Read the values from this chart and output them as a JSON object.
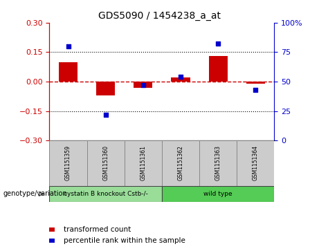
{
  "title": "GDS5090 / 1454238_a_at",
  "samples": [
    "GSM1151359",
    "GSM1151360",
    "GSM1151361",
    "GSM1151362",
    "GSM1151363",
    "GSM1151364"
  ],
  "bar_values": [
    0.1,
    -0.07,
    -0.03,
    0.02,
    0.13,
    -0.01
  ],
  "percentile_values": [
    80,
    22,
    47,
    54,
    82,
    43
  ],
  "ylim_left": [
    -0.3,
    0.3
  ],
  "ylim_right": [
    0,
    100
  ],
  "yticks_left": [
    -0.3,
    -0.15,
    0.0,
    0.15,
    0.3
  ],
  "yticks_right": [
    0,
    25,
    50,
    75,
    100
  ],
  "hlines": [
    0.15,
    -0.15
  ],
  "bar_color": "#cc0000",
  "dot_color": "#0000cc",
  "zero_line_color": "#cc0000",
  "groups": [
    {
      "label": "cystatin B knockout Cstb-/-",
      "samples": [
        0,
        1,
        2
      ],
      "color": "#99dd99"
    },
    {
      "label": "wild type",
      "samples": [
        3,
        4,
        5
      ],
      "color": "#55cc55"
    }
  ],
  "sample_box_color": "#cccccc",
  "genotype_label": "genotype/variation",
  "legend_bar_label": "transformed count",
  "legend_dot_label": "percentile rank within the sample",
  "background_color": "#ffffff",
  "plot_bg_color": "#ffffff"
}
